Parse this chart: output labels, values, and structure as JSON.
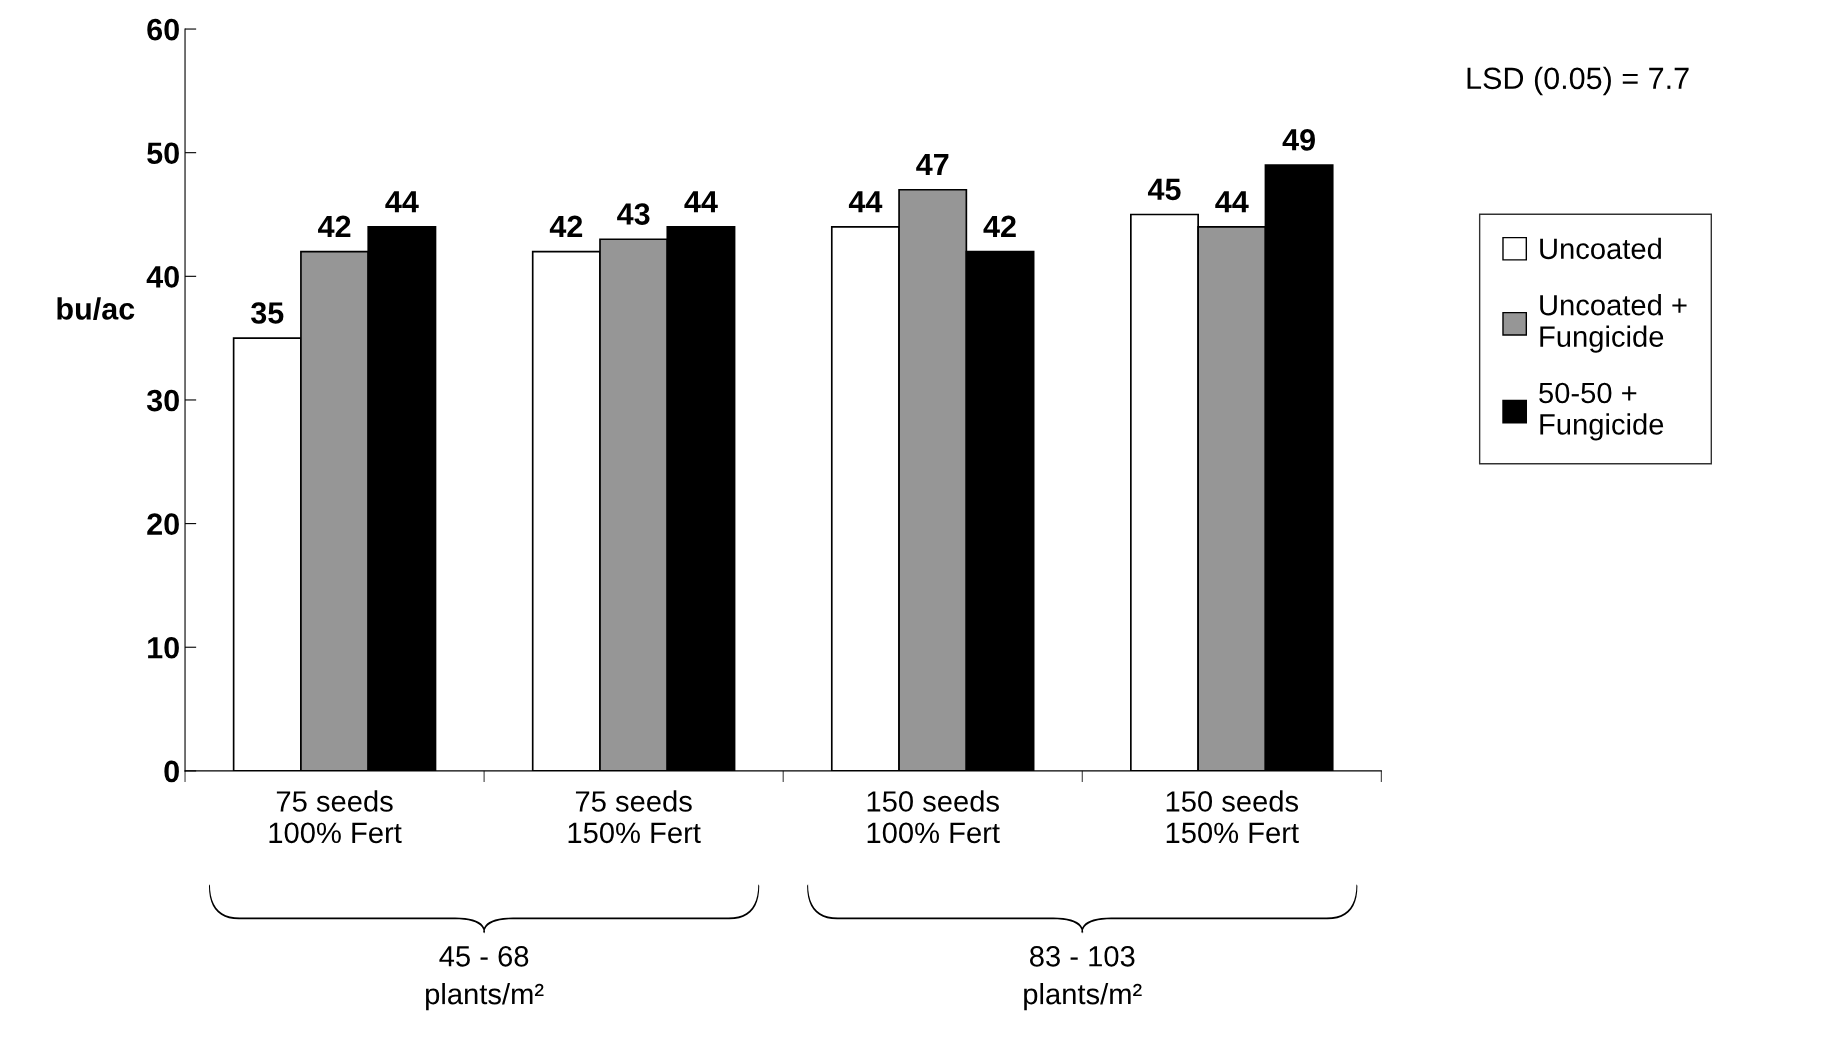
{
  "chart_data": {
    "type": "bar",
    "categories": [
      "75 seeds\n100% Fert",
      "75 seeds\n150% Fert",
      "150 seeds\n100% Fert",
      "150 seeds\n150% Fert"
    ],
    "series": [
      {
        "name": "Uncoated",
        "color": "#ffffff",
        "values": [
          35,
          42,
          44,
          45
        ]
      },
      {
        "name": "Uncoated +\nFungicide",
        "color": "#969696",
        "values": [
          42,
          43,
          47,
          44
        ]
      },
      {
        "name": "50-50 +\nFungicide",
        "color": "#000000",
        "values": [
          44,
          44,
          42,
          49
        ]
      }
    ],
    "ylabel": "bu/ac",
    "ylim": [
      0,
      60
    ],
    "yticks": [
      0,
      10,
      20,
      30,
      40,
      50,
      60
    ],
    "data_labels": true,
    "grid": false,
    "legend": "right",
    "annotations": [
      "LSD (0.05) = 7.7",
      "45 - 68\nplants/m²",
      "83 - 103\nplants/m²"
    ]
  }
}
